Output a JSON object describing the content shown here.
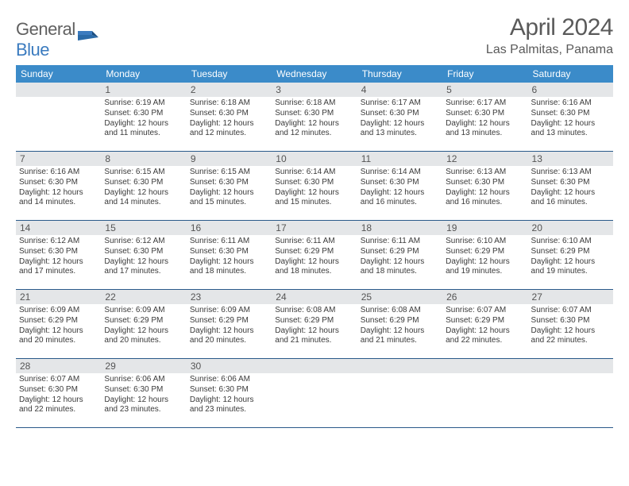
{
  "logo": {
    "text1": "General",
    "text2": "Blue"
  },
  "title": "April 2024",
  "location": "Las Palmitas, Panama",
  "colors": {
    "header_bg": "#3b8bc9",
    "header_text": "#ffffff",
    "daynum_bg": "#e4e6e8",
    "rule": "#2a5a8a",
    "logo_gray": "#606060",
    "logo_blue": "#3b7bbf"
  },
  "daysOfWeek": [
    "Sunday",
    "Monday",
    "Tuesday",
    "Wednesday",
    "Thursday",
    "Friday",
    "Saturday"
  ],
  "startOffset": 1,
  "days": [
    {
      "n": 1,
      "sr": "6:19 AM",
      "ss": "6:30 PM",
      "dl": "12 hours and 11 minutes."
    },
    {
      "n": 2,
      "sr": "6:18 AM",
      "ss": "6:30 PM",
      "dl": "12 hours and 12 minutes."
    },
    {
      "n": 3,
      "sr": "6:18 AM",
      "ss": "6:30 PM",
      "dl": "12 hours and 12 minutes."
    },
    {
      "n": 4,
      "sr": "6:17 AM",
      "ss": "6:30 PM",
      "dl": "12 hours and 13 minutes."
    },
    {
      "n": 5,
      "sr": "6:17 AM",
      "ss": "6:30 PM",
      "dl": "12 hours and 13 minutes."
    },
    {
      "n": 6,
      "sr": "6:16 AM",
      "ss": "6:30 PM",
      "dl": "12 hours and 13 minutes."
    },
    {
      "n": 7,
      "sr": "6:16 AM",
      "ss": "6:30 PM",
      "dl": "12 hours and 14 minutes."
    },
    {
      "n": 8,
      "sr": "6:15 AM",
      "ss": "6:30 PM",
      "dl": "12 hours and 14 minutes."
    },
    {
      "n": 9,
      "sr": "6:15 AM",
      "ss": "6:30 PM",
      "dl": "12 hours and 15 minutes."
    },
    {
      "n": 10,
      "sr": "6:14 AM",
      "ss": "6:30 PM",
      "dl": "12 hours and 15 minutes."
    },
    {
      "n": 11,
      "sr": "6:14 AM",
      "ss": "6:30 PM",
      "dl": "12 hours and 16 minutes."
    },
    {
      "n": 12,
      "sr": "6:13 AM",
      "ss": "6:30 PM",
      "dl": "12 hours and 16 minutes."
    },
    {
      "n": 13,
      "sr": "6:13 AM",
      "ss": "6:30 PM",
      "dl": "12 hours and 16 minutes."
    },
    {
      "n": 14,
      "sr": "6:12 AM",
      "ss": "6:30 PM",
      "dl": "12 hours and 17 minutes."
    },
    {
      "n": 15,
      "sr": "6:12 AM",
      "ss": "6:30 PM",
      "dl": "12 hours and 17 minutes."
    },
    {
      "n": 16,
      "sr": "6:11 AM",
      "ss": "6:30 PM",
      "dl": "12 hours and 18 minutes."
    },
    {
      "n": 17,
      "sr": "6:11 AM",
      "ss": "6:29 PM",
      "dl": "12 hours and 18 minutes."
    },
    {
      "n": 18,
      "sr": "6:11 AM",
      "ss": "6:29 PM",
      "dl": "12 hours and 18 minutes."
    },
    {
      "n": 19,
      "sr": "6:10 AM",
      "ss": "6:29 PM",
      "dl": "12 hours and 19 minutes."
    },
    {
      "n": 20,
      "sr": "6:10 AM",
      "ss": "6:29 PM",
      "dl": "12 hours and 19 minutes."
    },
    {
      "n": 21,
      "sr": "6:09 AM",
      "ss": "6:29 PM",
      "dl": "12 hours and 20 minutes."
    },
    {
      "n": 22,
      "sr": "6:09 AM",
      "ss": "6:29 PM",
      "dl": "12 hours and 20 minutes."
    },
    {
      "n": 23,
      "sr": "6:09 AM",
      "ss": "6:29 PM",
      "dl": "12 hours and 20 minutes."
    },
    {
      "n": 24,
      "sr": "6:08 AM",
      "ss": "6:29 PM",
      "dl": "12 hours and 21 minutes."
    },
    {
      "n": 25,
      "sr": "6:08 AM",
      "ss": "6:29 PM",
      "dl": "12 hours and 21 minutes."
    },
    {
      "n": 26,
      "sr": "6:07 AM",
      "ss": "6:29 PM",
      "dl": "12 hours and 22 minutes."
    },
    {
      "n": 27,
      "sr": "6:07 AM",
      "ss": "6:30 PM",
      "dl": "12 hours and 22 minutes."
    },
    {
      "n": 28,
      "sr": "6:07 AM",
      "ss": "6:30 PM",
      "dl": "12 hours and 22 minutes."
    },
    {
      "n": 29,
      "sr": "6:06 AM",
      "ss": "6:30 PM",
      "dl": "12 hours and 23 minutes."
    },
    {
      "n": 30,
      "sr": "6:06 AM",
      "ss": "6:30 PM",
      "dl": "12 hours and 23 minutes."
    }
  ],
  "labels": {
    "sunrise": "Sunrise:",
    "sunset": "Sunset:",
    "daylight": "Daylight:"
  }
}
